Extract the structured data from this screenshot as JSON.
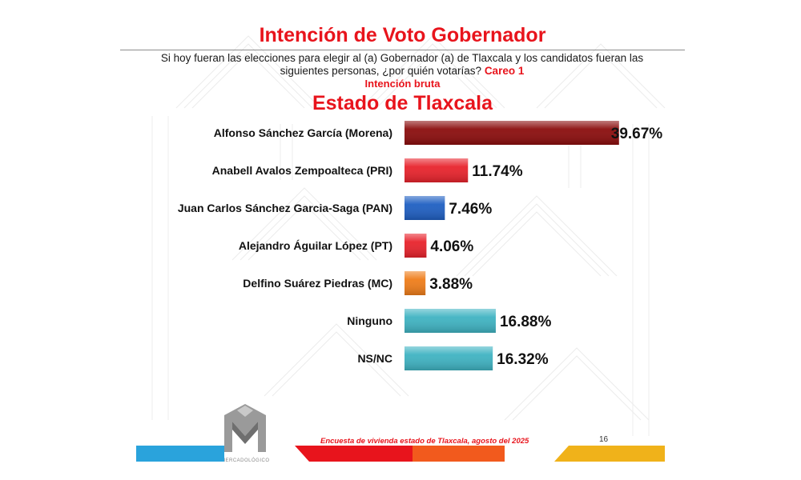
{
  "title": "Intención de Voto Gobernador",
  "question": "Si hoy fueran las elecciones para elegir al (a) Gobernador (a) de Tlaxcala y los candidatos fueran las siguientes personas, ¿por quién votarías?",
  "question_tag": "Careo 1",
  "subtitle": "Intención bruta",
  "region": "Estado de  Tlaxcala",
  "footer": {
    "survey": "Encuesta de vivienda estado de Tlaxcala, agosto del 2025",
    "page": "16",
    "logo_text": "MERCADOLÓGICO"
  },
  "colors": {
    "accent": "#e8141c",
    "footer_blue": "#2aa3dc",
    "footer_red": "#e8141c",
    "footer_gold": "#f0b21a"
  },
  "chart_data": {
    "type": "bar",
    "orientation": "horizontal",
    "categories": [
      "Alfonso Sánchez García (Morena)",
      "Anabell Avalos Zempoalteca (PRI)",
      "Juan Carlos Sánchez Garcia-Saga (PAN)",
      "Alejandro Águilar López (PT)",
      "Delfino Suárez Piedras (MC)",
      "Ninguno",
      "NS/NC"
    ],
    "values": [
      39.67,
      11.74,
      7.46,
      4.06,
      3.88,
      16.88,
      16.32
    ],
    "labels": [
      "39.67%",
      "11.74%",
      "7.46%",
      "4.06%",
      "3.88%",
      "16.88%",
      "16.32%"
    ],
    "colors": [
      "#8b0d0d",
      "#e8232c",
      "#1f5fc2",
      "#e8232c",
      "#ef7d1a",
      "#3fb3c2",
      "#3fb3c2"
    ],
    "xlim": [
      0,
      40
    ],
    "grid": false,
    "legend": false
  }
}
